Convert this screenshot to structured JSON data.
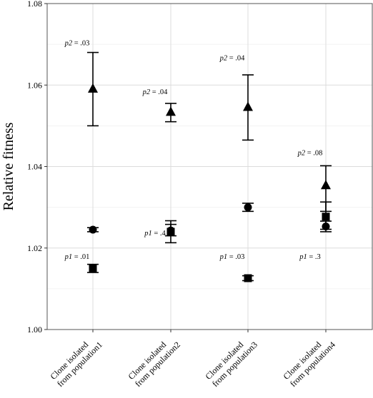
{
  "chart_data": {
    "type": "scatter",
    "title": "",
    "xlabel": "",
    "ylabel": "Relative fitness",
    "ylim": [
      1.0,
      1.08
    ],
    "yticks": [
      "1.00",
      "1.02",
      "1.04",
      "1.06",
      "1.08"
    ],
    "grid": true,
    "categories": [
      [
        "Clone isolated",
        "from population1"
      ],
      [
        "Clone isolated",
        "from population2"
      ],
      [
        "Clone isolated",
        "from population3"
      ],
      [
        "Clone isolated",
        "from population4"
      ]
    ],
    "series": [
      {
        "marker": "triangle",
        "values": [
          1.0592,
          1.0535,
          1.0547,
          1.0355
        ],
        "err_low": [
          1.05,
          1.051,
          1.0465,
          1.029
        ],
        "err_high": [
          1.068,
          1.0555,
          1.0625,
          1.0402
        ]
      },
      {
        "marker": "circle",
        "values": [
          1.0245,
          1.0243,
          1.03,
          1.0253
        ],
        "err_low": [
          1.024,
          1.023,
          1.029,
          1.024
        ],
        "err_high": [
          1.025,
          1.0258,
          1.031,
          1.0266
        ]
      },
      {
        "marker": "square",
        "values": [
          1.015,
          1.024,
          1.0126,
          1.0277
        ],
        "err_low": [
          1.014,
          1.0213,
          1.012,
          1.0246
        ],
        "err_high": [
          1.016,
          1.0267,
          1.0132,
          1.0313
        ]
      }
    ],
    "annotations": [
      {
        "text": "p2 = .03",
        "category": 0,
        "y": 1.0705
      },
      {
        "text": "p2 = .04",
        "category": 1,
        "y": 1.0585
      },
      {
        "text": "p2 = .04",
        "category": 2,
        "y": 1.0668
      },
      {
        "text": "p2 = .08",
        "category": 3,
        "y": 1.0435
      },
      {
        "text": "p1 = .01",
        "category": 0,
        "y": 1.018
      },
      {
        "text": "p1 = .4",
        "category": 1,
        "y": 1.0238
      },
      {
        "text": "p1 = .03",
        "category": 2,
        "y": 1.018
      },
      {
        "text": "p1 = .3",
        "category": 3,
        "y": 1.018
      }
    ]
  }
}
